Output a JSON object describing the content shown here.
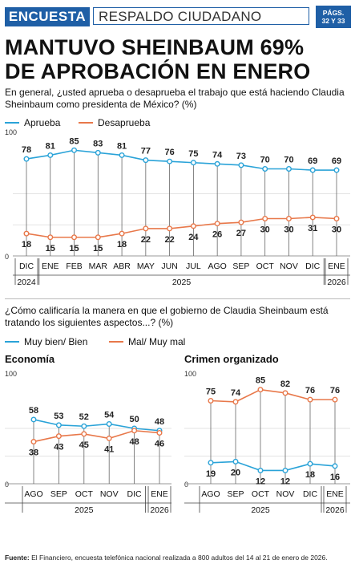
{
  "header": {
    "section_label": "ENCUESTA",
    "section_title": "RESPALDO CIUDADANO",
    "pages_line1": "PÁGS.",
    "pages_line2": "32 Y 33"
  },
  "headline_line1": "MANTUVO SHEINBAUM 69%",
  "headline_line2": "DE APROBACIÓN EN ENERO",
  "question1": "En general, ¿usted aprueba o desaprueba el trabajo que está haciendo Claudia Sheinbaum como presidenta de México? (%)",
  "question2": "¿Cómo calificaría la manera en que el gobierno de Claudia Sheinbaum está tratando los siguientes aspectos...? (%)",
  "colors": {
    "blue": "#2aa3d8",
    "orange": "#e8784a",
    "brand": "#1f5fa6"
  },
  "chart_data": [
    {
      "type": "line",
      "categories": [
        "DIC",
        "ENE",
        "FEB",
        "MAR",
        "ABR",
        "MAY",
        "JUN",
        "JUL",
        "AGO",
        "SEP",
        "OCT",
        "NOV",
        "DIC",
        "ENE"
      ],
      "year_labels": [
        "2024",
        "2025",
        "2026"
      ],
      "ylim": [
        0,
        100
      ],
      "ytick_labels": [
        "100",
        "0"
      ],
      "legend_position": "top-left",
      "series": [
        {
          "name": "Aprueba",
          "values": [
            78,
            81,
            85,
            83,
            81,
            77,
            76,
            75,
            74,
            73,
            70,
            70,
            69,
            69
          ]
        },
        {
          "name": "Desaprueba",
          "values": [
            18,
            15,
            15,
            15,
            18,
            22,
            22,
            24,
            26,
            27,
            30,
            30,
            31,
            30
          ]
        }
      ]
    },
    {
      "type": "line",
      "title": "Economía",
      "categories": [
        "AGO",
        "SEP",
        "OCT",
        "NOV",
        "DIC",
        "ENE"
      ],
      "year_labels": [
        "2025",
        "2026"
      ],
      "ylim": [
        0,
        100
      ],
      "ytick_labels": [
        "100",
        "0"
      ],
      "series": [
        {
          "name": "Muy bien/ Bien",
          "values": [
            58,
            53,
            52,
            54,
            50,
            48
          ]
        },
        {
          "name": "Mal/ Muy mal",
          "values": [
            38,
            43,
            45,
            41,
            48,
            46
          ]
        }
      ]
    },
    {
      "type": "line",
      "title": "Crimen organizado",
      "categories": [
        "AGO",
        "SEP",
        "OCT",
        "NOV",
        "DIC",
        "ENE"
      ],
      "year_labels": [
        "2025",
        "2026"
      ],
      "ylim": [
        0,
        100
      ],
      "ytick_labels": [
        "100",
        "0"
      ],
      "series": [
        {
          "name": "Muy bien/ Bien",
          "values": [
            19,
            20,
            12,
            12,
            18,
            16
          ]
        },
        {
          "name": "Mal/ Muy mal",
          "values": [
            75,
            74,
            85,
            82,
            76,
            76
          ]
        }
      ]
    }
  ],
  "source_label": "Fuente:",
  "source_text": "El Financiero, encuesta telefónica nacional realizada a 800 adultos del 14 al 21 de enero de 2026."
}
